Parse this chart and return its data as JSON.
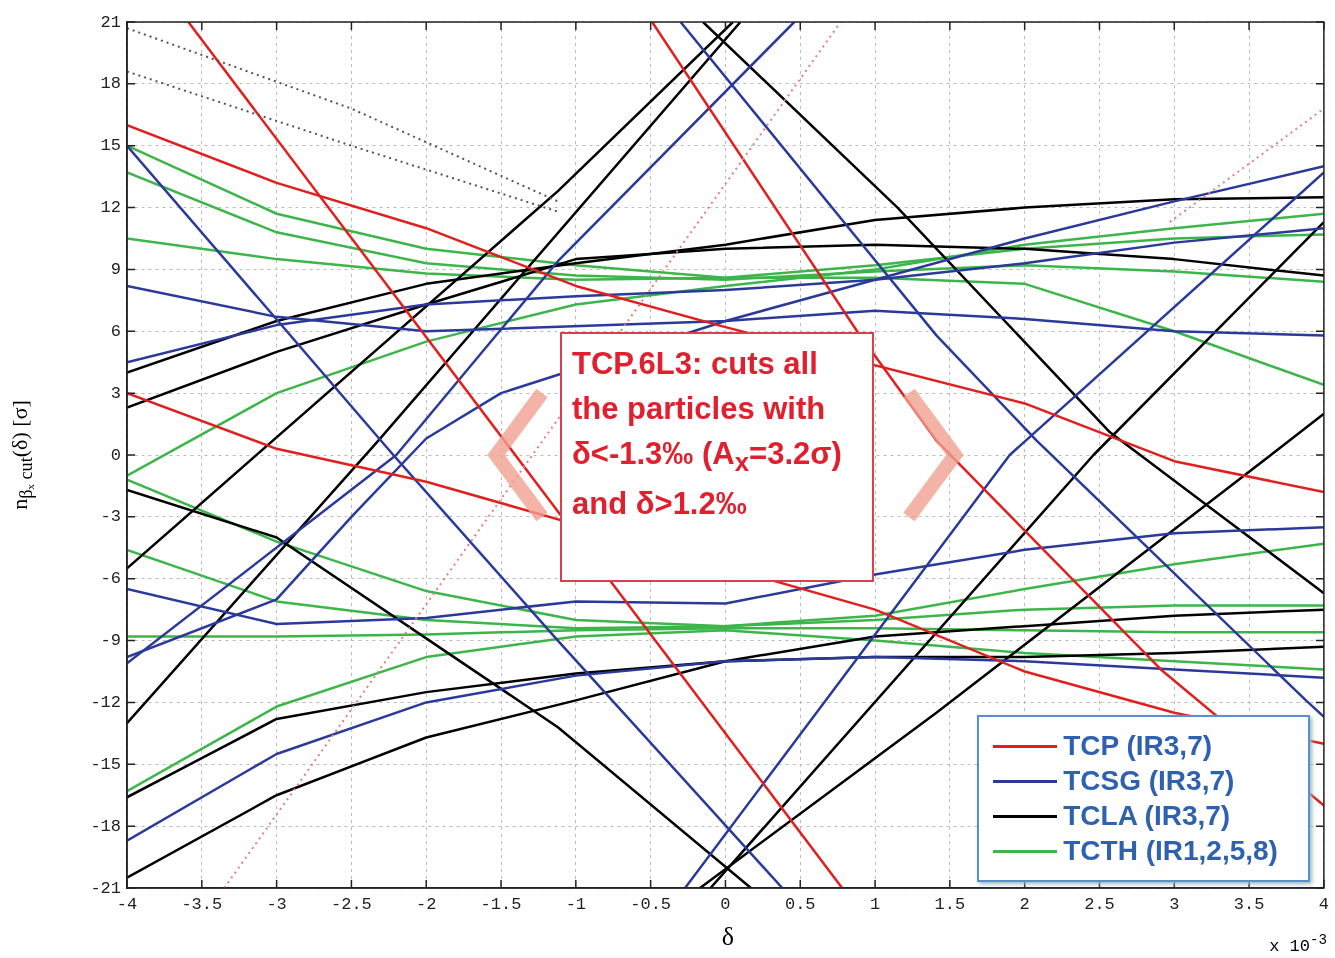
{
  "chart_data": {
    "type": "line",
    "xlabel": "δ",
    "ylabel": "n$_{βₓ cut}$(δ)   [σ]",
    "annotations": [
      "TCP.6L3: cuts all the particles with δ<-1.3‰ (A$_{x}$=3.2σ)  and δ>1.2‰",
      "x 10$^{-3}$"
    ],
    "xlim": [
      -4,
      4
    ],
    "ylim": [
      -21,
      21
    ],
    "xticks": [
      -4,
      -3.5,
      -3,
      -2.5,
      -2,
      -1.5,
      -1,
      -0.5,
      0,
      0.5,
      1,
      1.5,
      2,
      2.5,
      3,
      3.5,
      4
    ],
    "yticks": [
      -21,
      -18,
      -15,
      -12,
      -9,
      -6,
      -3,
      0,
      3,
      6,
      9,
      12,
      15,
      18,
      21
    ],
    "grid": true,
    "legend": "bottom right",
    "line_style": "solid",
    "series": [
      {
        "line_style": "dotted",
        "color": "#555555",
        "x": [
          -4,
          -2.5,
          -1.12
        ],
        "values": [
          20.7,
          16.8,
          12.3
        ]
      },
      {
        "line_style": "dotted",
        "color": "#555555",
        "x": [
          -4,
          -2.5,
          -1.12
        ],
        "values": [
          18.6,
          15,
          11.8
        ]
      },
      {
        "line_style": "dotted",
        "color": "#e08080",
        "x": [
          -3.35,
          0.77
        ],
        "values": [
          -21,
          21
        ]
      },
      {
        "line_style": "dotted",
        "color": "#e08080",
        "x": [
          2.97,
          4
        ],
        "values": [
          11.3,
          16.8
        ]
      },
      {
        "name": "TCP (IR3,7)",
        "color": "#e0201e",
        "x": [
          -3.59,
          0.78
        ],
        "values": [
          21,
          -21
        ]
      },
      {
        "color": "#e0201e",
        "x": [
          -4,
          -3,
          -2,
          -1,
          0,
          1,
          2,
          3,
          4
        ],
        "values": [
          16,
          13.2,
          11,
          8.2,
          6.2,
          null,
          2.5,
          -0.3,
          -1.8
        ]
      },
      {
        "color": "#e0201e",
        "x": [
          -4,
          -3,
          -2,
          -1,
          0,
          1,
          2,
          3,
          4
        ],
        "values": [
          3,
          0.3,
          -1.3,
          null,
          null,
          -7.5,
          -10.5,
          -12.5,
          -14
        ]
      },
      {
        "color": "#e0201e",
        "x": [
          -0.49,
          0.88,
          1.41,
          2.91,
          4
        ],
        "values": [
          21,
          6,
          0.7,
          -10.4,
          -17
        ]
      },
      {
        "name": "TCSG (IR3,7)",
        "color": "#2b3a9a",
        "x": [
          -4,
          -2.22,
          -1.12,
          0.38
        ],
        "values": [
          15,
          0,
          -9,
          -21
        ]
      },
      {
        "color": "#2b3a9a",
        "x": [
          -0.3,
          1.41,
          2.08,
          3.88,
          4
        ],
        "values": [
          21,
          5.8,
          0.7,
          -11.9,
          -12.7
        ]
      },
      {
        "color": "#2b3a9a",
        "x": [
          -4,
          -2.2,
          -1.12,
          0.46
        ],
        "values": [
          -10.1,
          0,
          9.4,
          21
        ]
      },
      {
        "color": "#2b3a9a",
        "x": [
          -0.27,
          1.9,
          4
        ],
        "values": [
          -21,
          0,
          13.7
        ]
      },
      {
        "color": "#2b3a9a",
        "x": [
          -4,
          -3,
          -2,
          -1,
          0,
          1,
          2,
          3,
          4
        ],
        "values": [
          8.2,
          6.7,
          6,
          null,
          6.5,
          7,
          6.6,
          6,
          5.8
        ]
      },
      {
        "color": "#2b3a9a",
        "x": [
          -4,
          -3,
          -2,
          -1,
          0,
          1,
          2,
          3,
          4
        ],
        "values": [
          4.5,
          6.3,
          7.3,
          7.7,
          8,
          8.5,
          9.3,
          10.3,
          11
        ]
      },
      {
        "color": "#2b3a9a",
        "x": [
          -4,
          -3,
          -2,
          -1,
          0,
          1,
          2,
          3,
          4
        ],
        "values": [
          -6.5,
          -8.2,
          -7.9,
          -7.1,
          -7.2,
          -5.8,
          -4.6,
          -3.8,
          -3.5
        ]
      },
      {
        "color": "#2b3a9a",
        "x": [
          -4,
          -3,
          -2.5,
          -2,
          -1.5,
          -1,
          0,
          1,
          2,
          3,
          4
        ],
        "values": [
          -9.8,
          -7,
          -3,
          0.8,
          3,
          null,
          6.5,
          8.5,
          10.5,
          12.3,
          14
        ]
      },
      {
        "color": "#2b3a9a",
        "x": [
          -4,
          -3,
          -2,
          -1,
          0,
          1,
          2,
          3,
          4
        ],
        "values": [
          -18.7,
          -14.5,
          -12,
          -10.7,
          -10,
          -9.8,
          -10,
          -10.4,
          -10.8
        ]
      },
      {
        "name": "TCLA (IR3,7)",
        "color": "#000000",
        "x": [
          -4,
          -3,
          -2,
          -1,
          0,
          1,
          2,
          3,
          4
        ],
        "values": [
          -20.5,
          -16.5,
          -13.7,
          -11.9,
          -10,
          -9.8,
          -9.8,
          -9.6,
          -9.3
        ]
      },
      {
        "color": "#000000",
        "x": [
          -4,
          -3,
          -2,
          -1,
          0,
          1,
          2,
          3,
          4
        ],
        "values": [
          -16.6,
          -12.8,
          -11.5,
          -10.6,
          -10,
          -8.8,
          -8.3,
          -7.8,
          -7.5
        ]
      },
      {
        "color": "#000000",
        "x": [
          -4,
          -2.32,
          0.1
        ],
        "values": [
          -13,
          0.7,
          21
        ]
      },
      {
        "color": "#000000",
        "x": [
          -4,
          -1.12,
          0.05
        ],
        "values": [
          -5.5,
          12.8,
          21
        ]
      },
      {
        "color": "#000000",
        "x": [
          -4,
          -3,
          -2,
          -1,
          0,
          1,
          2,
          3,
          4
        ],
        "values": [
          2.3,
          5,
          7.3,
          9.5,
          10,
          10.2,
          10,
          9.5,
          8.7
        ]
      },
      {
        "color": "#000000",
        "x": [
          -4,
          -3,
          -2,
          -1,
          0,
          1,
          2,
          3,
          4
        ],
        "values": [
          4,
          6.5,
          8.3,
          9.3,
          10.2,
          11.4,
          12,
          12.4,
          12.5
        ]
      },
      {
        "color": "#000000",
        "x": [
          -0.15,
          1.15,
          2.57,
          4
        ],
        "values": [
          21,
          12,
          1.1,
          -6.7
        ]
      },
      {
        "color": "#000000",
        "x": [
          -4,
          -3,
          -1.12,
          0.17
        ],
        "values": [
          -1.7,
          -4,
          -13.2,
          -21
        ]
      },
      {
        "color": "#000000",
        "x": [
          -0.17,
          1.41,
          3.77,
          4
        ],
        "values": [
          -21,
          -12.5,
          0.7,
          2
        ]
      },
      {
        "color": "#000000",
        "x": [
          -0.1,
          2.46,
          4
        ],
        "values": [
          -21,
          0,
          11.3
        ]
      },
      {
        "name": "TCTH (IR1,2,5,8)",
        "color": "#3cb54a",
        "x": [
          -4,
          -3,
          -2,
          -1,
          0,
          1,
          2,
          3,
          4
        ],
        "values": [
          15,
          11.7,
          10,
          9.2,
          8.6,
          8.6,
          8.3,
          6,
          3.4
        ]
      },
      {
        "color": "#3cb54a",
        "x": [
          -4,
          -3,
          -2,
          -1,
          0,
          1,
          2,
          3,
          4
        ],
        "values": [
          13.7,
          10.8,
          9.3,
          8.7,
          8.5,
          8.9,
          9.2,
          8.9,
          8.4
        ]
      },
      {
        "color": "#3cb54a",
        "x": [
          -4,
          -3,
          -2,
          -1,
          0,
          1,
          2,
          3,
          4
        ],
        "values": [
          10.5,
          9.5,
          8.8,
          8.5,
          8.6,
          9.2,
          10,
          10.5,
          10.7
        ]
      },
      {
        "color": "#3cb54a",
        "x": [
          -4,
          -3,
          -2,
          -1,
          0,
          1,
          2,
          3,
          4
        ],
        "values": [
          -1,
          3,
          5.5,
          7.3,
          8.2,
          9,
          10.2,
          11,
          11.7
        ]
      },
      {
        "color": "#3cb54a",
        "x": [
          -4,
          -3,
          -2,
          -1,
          0,
          1,
          2,
          3,
          4
        ],
        "values": [
          -1.2,
          -4.2,
          -6.6,
          -8,
          -8.3,
          -7.8,
          -6.5,
          -5.3,
          -4.3
        ]
      },
      {
        "color": "#3cb54a",
        "x": [
          -4,
          -3,
          -2,
          -1,
          0,
          1,
          2,
          3,
          4
        ],
        "values": [
          -4.6,
          -7.1,
          -8,
          -8.4,
          -8.3,
          -8,
          -7.5,
          -7.3,
          -7.3
        ]
      },
      {
        "color": "#3cb54a",
        "x": [
          -4,
          -3,
          -2,
          -1,
          0,
          1,
          2,
          3,
          4
        ],
        "values": [
          -8.8,
          -8.8,
          -8.7,
          -8.5,
          -8.4,
          -8.4,
          -8.5,
          -8.6,
          -8.6
        ]
      },
      {
        "color": "#3cb54a",
        "x": [
          -4,
          -3,
          -2,
          -1,
          0,
          1,
          2,
          3,
          4
        ],
        "values": [
          -16.3,
          -12.2,
          -9.8,
          -8.8,
          -8.5,
          -9,
          -9.6,
          -10,
          -10.4
        ]
      }
    ]
  }
}
